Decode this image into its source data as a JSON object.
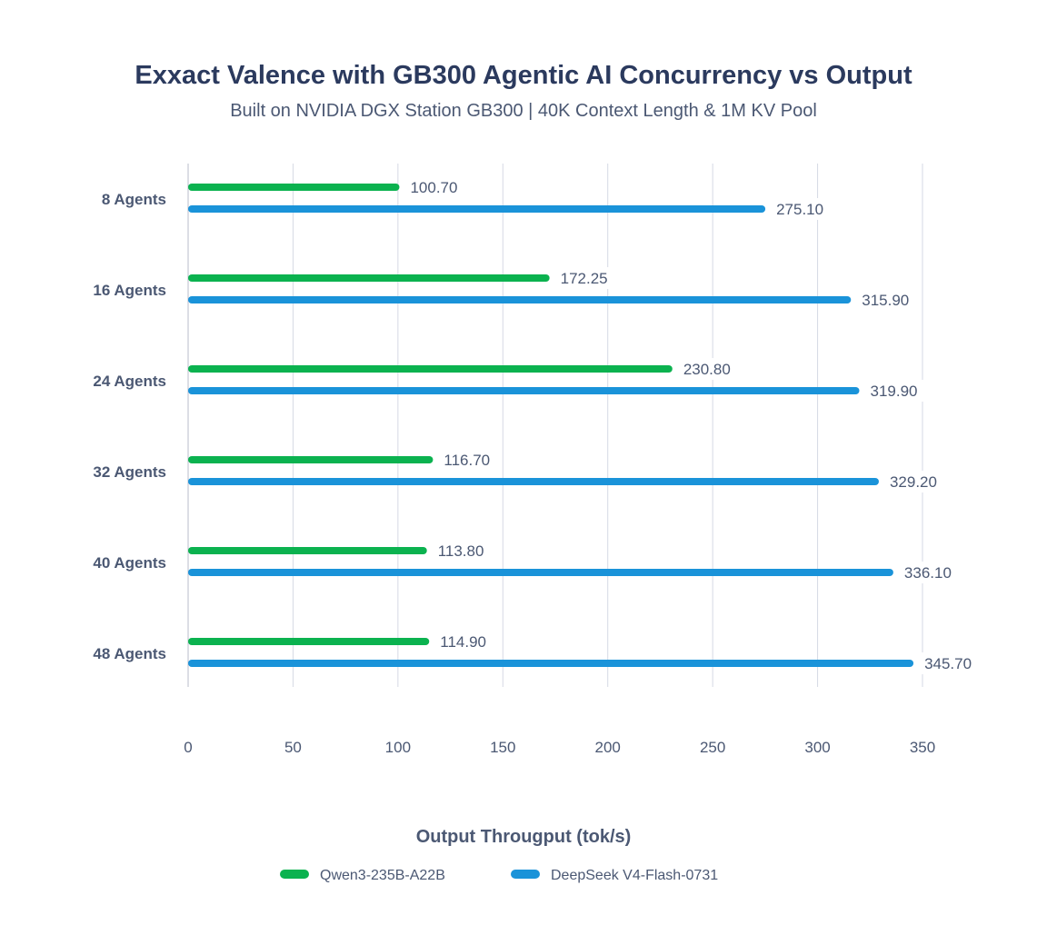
{
  "chart_data": {
    "type": "bar",
    "orientation": "horizontal",
    "title": "Exxact Valence with GB300 Agentic AI Concurrency vs Output",
    "subtitle": "Built on NVIDIA DGX Station GB300 | 40K Context Length & 1M KV Pool",
    "xlabel": "Output Througput (tok/s)",
    "ylabel": "",
    "categories": [
      "8 Agents",
      "16 Agents",
      "24 Agents",
      "32 Agents",
      "40 Agents",
      "48 Agents"
    ],
    "series": [
      {
        "name": "Qwen3-235B-A22B",
        "color": "#0bb24f",
        "values": [
          100.7,
          172.25,
          230.8,
          116.7,
          113.8,
          114.9
        ],
        "labels": [
          "100.70",
          "172.25",
          "230.80",
          "116.70",
          "113.80",
          "114.90"
        ]
      },
      {
        "name": "DeepSeek V4-Flash-0731",
        "color": "#1a93d9",
        "values": [
          275.1,
          315.9,
          319.9,
          329.2,
          336.1,
          345.7
        ],
        "labels": [
          "275.10",
          "315.90",
          "319.90",
          "329.20",
          "336.10",
          "345.70"
        ]
      }
    ],
    "xlim": [
      0,
      350
    ],
    "xticks": [
      0,
      50,
      100,
      150,
      200,
      250,
      300,
      350
    ],
    "grid": true,
    "legend": "bottom-center"
  }
}
